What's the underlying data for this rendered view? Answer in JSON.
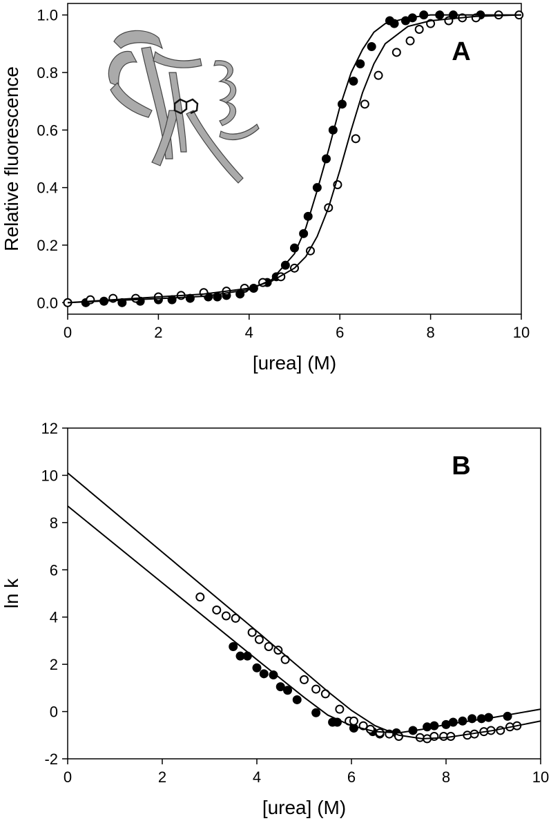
{
  "chart_data": [
    {
      "type": "scatter",
      "annotation": "A",
      "xlabel": "[urea] (M)",
      "ylabel": "Relative fluorescence",
      "xlim": [
        0,
        10
      ],
      "ylim": [
        -0.04,
        1.04
      ],
      "xticks": [
        0,
        2,
        4,
        6,
        8,
        10
      ],
      "yticks": [
        {
          "value": 0,
          "label": "0.0"
        },
        {
          "value": 0.2,
          "label": "0.2"
        },
        {
          "value": 0.4,
          "label": "0.4"
        },
        {
          "value": 0.6,
          "label": "0.6"
        },
        {
          "value": 0.8,
          "label": "0.8"
        },
        {
          "value": 1,
          "label": "1.0"
        }
      ],
      "series": [
        {
          "style": "filled",
          "color": "#000000",
          "x": [
            0,
            0.4,
            0.8,
            1.2,
            1.6,
            2.0,
            2.3,
            2.7,
            3.1,
            3.3,
            3.5,
            3.8,
            4.1,
            4.4,
            4.6,
            4.8,
            5.0,
            5.2,
            5.3,
            5.5,
            5.7,
            5.85,
            6.05,
            6.3,
            6.45,
            6.7,
            7.1,
            7.2,
            7.45,
            7.6,
            7.85,
            8.2,
            8.5,
            9.1
          ],
          "values": [
            0,
            0,
            0.005,
            0,
            0.005,
            0.01,
            0.01,
            0.015,
            0.02,
            0.02,
            0.025,
            0.03,
            0.05,
            0.07,
            0.09,
            0.13,
            0.19,
            0.24,
            0.3,
            0.4,
            0.5,
            0.6,
            0.69,
            0.77,
            0.83,
            0.89,
            0.98,
            0.97,
            0.98,
            0.99,
            1.0,
            1.0,
            1.0,
            1.0
          ]
        },
        {
          "style": "open",
          "color": "#000000",
          "x": [
            0,
            0.5,
            1.0,
            1.5,
            2.0,
            2.5,
            3.0,
            3.5,
            3.9,
            4.3,
            4.7,
            5.0,
            5.35,
            5.75,
            5.95,
            6.35,
            6.55,
            6.85,
            7.25,
            7.55,
            7.75,
            8.0,
            8.4,
            8.7,
            9.0,
            9.5,
            9.95
          ],
          "values": [
            0,
            0.01,
            0.015,
            0.015,
            0.02,
            0.025,
            0.035,
            0.04,
            0.05,
            0.07,
            0.09,
            0.12,
            0.18,
            0.33,
            0.41,
            0.57,
            0.69,
            0.79,
            0.87,
            0.91,
            0.95,
            0.97,
            0.98,
            0.99,
            0.99,
            1.0,
            1.0
          ]
        },
        {
          "style": "line",
          "color": "#000000",
          "x": [
            0,
            1,
            2,
            3,
            4,
            4.5,
            5,
            5.25,
            5.5,
            5.75,
            6,
            6.25,
            6.5,
            6.75,
            7,
            7.5,
            8,
            9,
            10
          ],
          "values": [
            0,
            0.007,
            0.014,
            0.022,
            0.045,
            0.08,
            0.17,
            0.26,
            0.39,
            0.53,
            0.68,
            0.8,
            0.88,
            0.94,
            0.97,
            0.99,
            1.0,
            1.0,
            1.0
          ]
        },
        {
          "style": "line",
          "color": "#000000",
          "x": [
            0,
            1,
            2,
            3,
            4,
            4.5,
            5,
            5.25,
            5.5,
            5.75,
            6,
            6.25,
            6.5,
            6.75,
            7,
            7.5,
            8,
            9,
            10
          ],
          "values": [
            0,
            0.01,
            0.02,
            0.03,
            0.05,
            0.075,
            0.12,
            0.16,
            0.23,
            0.33,
            0.46,
            0.6,
            0.73,
            0.83,
            0.9,
            0.96,
            0.98,
            0.995,
            1.0
          ]
        }
      ]
    },
    {
      "type": "scatter",
      "annotation": "B",
      "xlabel": "[urea] (M)",
      "ylabel": "ln k",
      "xlim": [
        0,
        10
      ],
      "ylim": [
        -2,
        12
      ],
      "xticks": [
        0,
        2,
        4,
        6,
        8,
        10
      ],
      "yticks": [
        -2,
        0,
        2,
        4,
        6,
        8,
        10,
        12
      ],
      "series": [
        {
          "style": "filled",
          "color": "#000000",
          "x": [
            3.5,
            3.65,
            3.8,
            4.0,
            4.15,
            4.35,
            4.5,
            4.65,
            4.85,
            5.25,
            5.6,
            5.7,
            6.05,
            6.45,
            6.6,
            6.95,
            7.3,
            7.6,
            7.75,
            8.0,
            8.15,
            8.35,
            8.55,
            8.75,
            8.9,
            9.3
          ],
          "values": [
            2.75,
            2.35,
            2.35,
            1.85,
            1.6,
            1.55,
            1.05,
            0.9,
            0.5,
            -0.05,
            -0.45,
            -0.45,
            -0.7,
            -0.85,
            -0.95,
            -0.9,
            -0.8,
            -0.65,
            -0.6,
            -0.55,
            -0.45,
            -0.4,
            -0.3,
            -0.3,
            -0.25,
            -0.2
          ]
        },
        {
          "style": "open",
          "color": "#000000",
          "x": [
            2.8,
            3.15,
            3.35,
            3.55,
            3.9,
            4.05,
            4.25,
            4.45,
            4.6,
            5.0,
            5.25,
            5.45,
            5.75,
            5.95,
            6.05,
            6.25,
            6.4,
            6.6,
            6.8,
            7.0,
            7.45,
            7.6,
            7.75,
            7.95,
            8.1,
            8.45,
            8.6,
            8.8,
            8.95,
            9.15,
            9.35,
            9.5
          ],
          "values": [
            4.85,
            4.3,
            4.05,
            3.95,
            3.35,
            3.05,
            2.75,
            2.6,
            2.2,
            1.35,
            0.95,
            0.75,
            0.1,
            -0.4,
            -0.4,
            -0.6,
            -0.75,
            -0.9,
            -0.95,
            -1.05,
            -1.1,
            -1.15,
            -1.05,
            -1.05,
            -1.05,
            -1.0,
            -0.95,
            -0.85,
            -0.8,
            -0.8,
            -0.65,
            -0.6
          ]
        },
        {
          "style": "line",
          "color": "#000000",
          "x": [
            0,
            2,
            4,
            5,
            5.5,
            6,
            6.5,
            7,
            7.5,
            8,
            9,
            10
          ],
          "values": [
            8.7,
            5.45,
            2.2,
            0.6,
            -0.15,
            -0.6,
            -0.85,
            -0.9,
            -0.75,
            -0.55,
            -0.25,
            0.1
          ]
        },
        {
          "style": "line",
          "color": "#000000",
          "x": [
            0,
            2,
            4,
            5,
            5.5,
            6,
            6.5,
            7,
            7.5,
            8,
            9,
            10
          ],
          "values": [
            10.1,
            6.75,
            3.4,
            1.7,
            0.85,
            0.05,
            -0.6,
            -1.0,
            -1.15,
            -1.1,
            -0.8,
            -0.4
          ]
        }
      ]
    }
  ]
}
